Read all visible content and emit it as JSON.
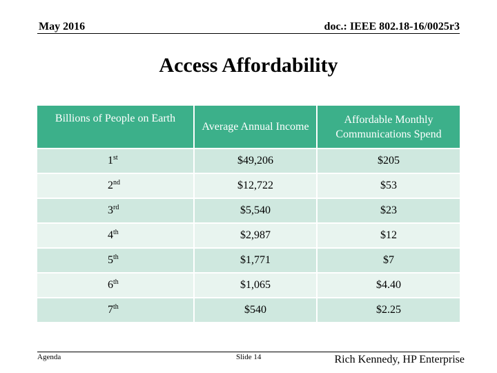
{
  "header": {
    "date": "May 2016",
    "doc_id": "doc.: IEEE 802.18-16/0025r3"
  },
  "title": "Access Affordability",
  "table": {
    "columns": [
      "Billions of People on Earth",
      "Average Annual Income",
      "Affordable Monthly Communications Spend"
    ],
    "rows": [
      {
        "rank": "1",
        "suffix": "st",
        "income": "$49,206",
        "spend": "$205"
      },
      {
        "rank": "2",
        "suffix": "nd",
        "income": "$12,722",
        "spend": "$53"
      },
      {
        "rank": "3",
        "suffix": "rd",
        "income": "$5,540",
        "spend": "$23"
      },
      {
        "rank": "4",
        "suffix": "th",
        "income": "$2,987",
        "spend": "$12"
      },
      {
        "rank": "5",
        "suffix": "th",
        "income": "$1,771",
        "spend": "$7"
      },
      {
        "rank": "6",
        "suffix": "th",
        "income": "$1,065",
        "spend": "$4.40"
      },
      {
        "rank": "7",
        "suffix": "th",
        "income": "$540",
        "spend": "$2.25"
      }
    ]
  },
  "footer": {
    "left": "Agenda",
    "middle": "Slide 14",
    "right": "Rich Kennedy, HP Enterprise"
  }
}
